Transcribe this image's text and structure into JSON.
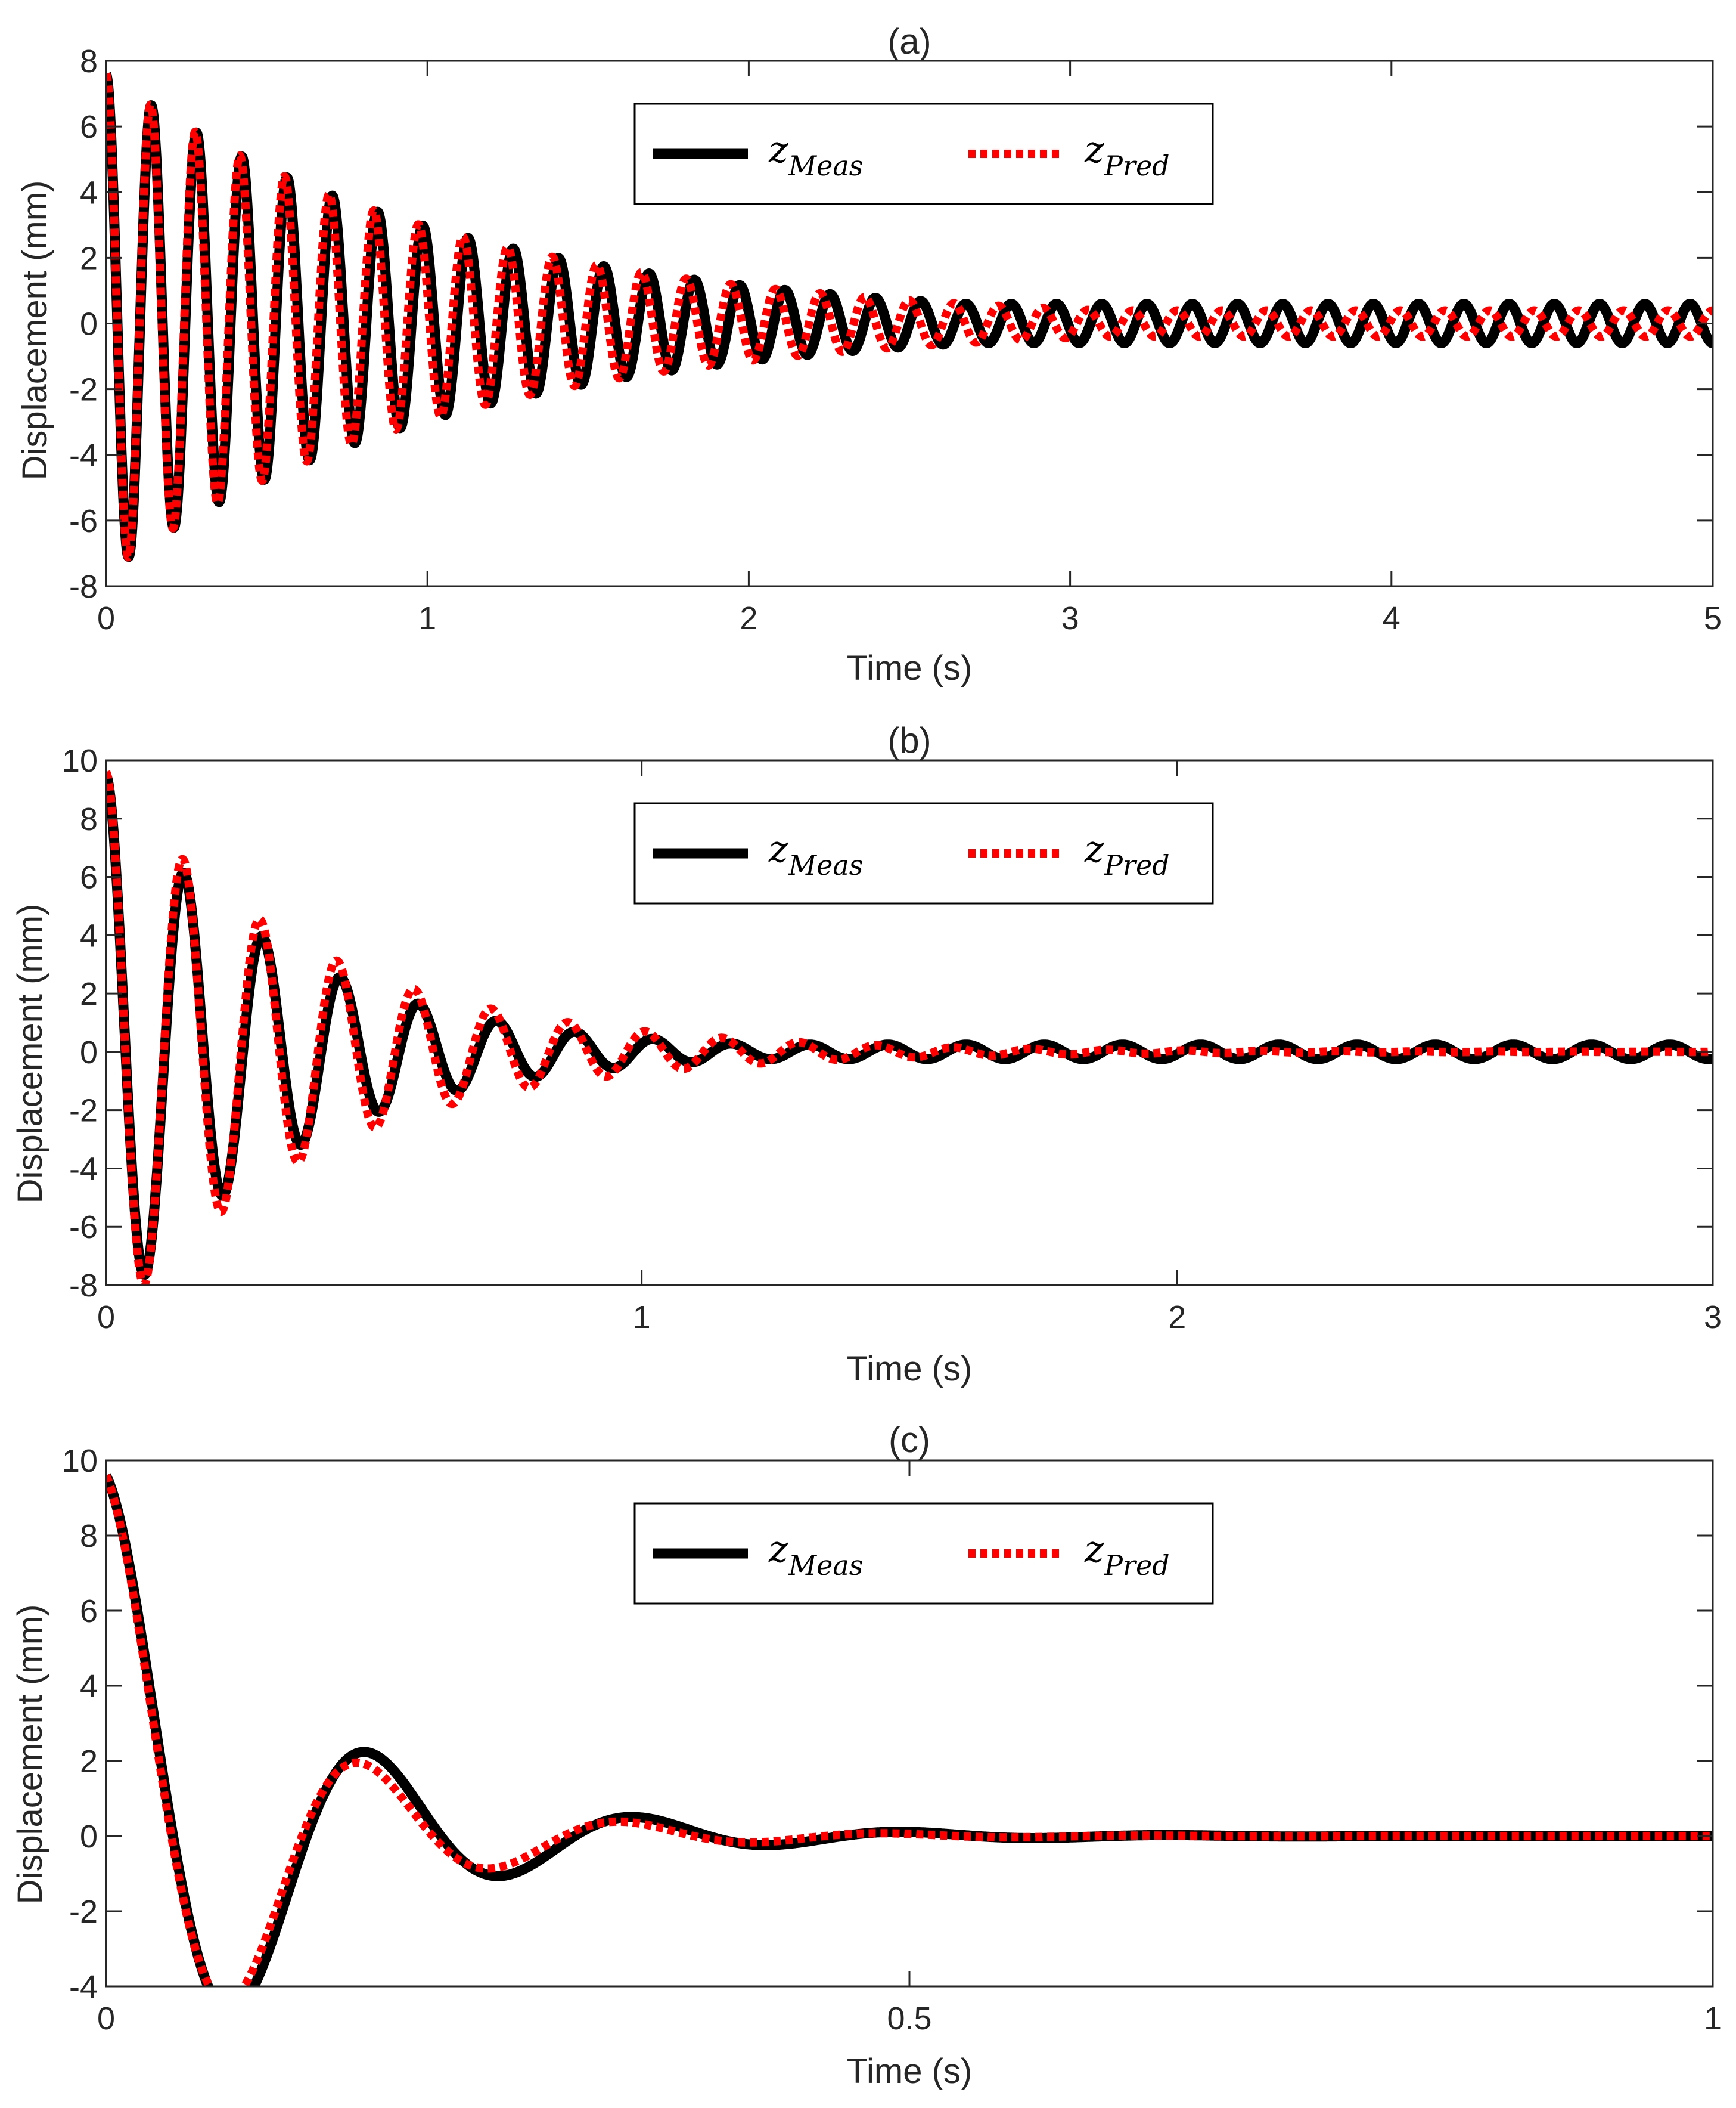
{
  "chart_data": [
    {
      "type": "line",
      "title": "(a)",
      "xlabel": "Time (s)",
      "ylabel": "Displacement (mm)",
      "xlim": [
        0,
        5
      ],
      "ylim": [
        -8,
        8
      ],
      "xticks": [
        0,
        1,
        2,
        3,
        4,
        5
      ],
      "xtick_labels": [
        "0",
        "1",
        "2",
        "3",
        "4",
        "5"
      ],
      "yticks": [
        -8,
        -6,
        -4,
        -2,
        0,
        2,
        4,
        6,
        8
      ],
      "ytick_labels": [
        "-8",
        "-6",
        "-4",
        "-2",
        "0",
        "2",
        "4",
        "6",
        "8"
      ],
      "legend": {
        "placement": "top-center",
        "entries": [
          {
            "symbol": "z",
            "sub": "Meas",
            "color": "#000000",
            "style": "solid"
          },
          {
            "symbol": "z",
            "sub": "Pred",
            "color": "#ff0000",
            "style": "dotted"
          }
        ]
      },
      "series": [
        {
          "name": "z_Meas",
          "color": "#000000",
          "style": "solid",
          "model": {
            "A": 7.6,
            "decay": 0.95,
            "freq": 7.1,
            "floor": 0.6,
            "phase": 0.0,
            "t_end": 5
          }
        },
        {
          "name": "z_Pred",
          "color": "#ff0000",
          "style": "dotted",
          "model": {
            "A": 7.6,
            "decay": 0.95,
            "freq": 7.2,
            "floor": 0.4,
            "phase": 0.0,
            "t_end": 5
          }
        }
      ]
    },
    {
      "type": "line",
      "title": "(b)",
      "xlabel": "Time (s)",
      "ylabel": "Displacement (mm)",
      "xlim": [
        0,
        3
      ],
      "ylim": [
        -8,
        10
      ],
      "xticks": [
        0,
        1,
        2,
        3
      ],
      "xtick_labels": [
        "0",
        "1",
        "2",
        "3"
      ],
      "yticks": [
        -8,
        -6,
        -4,
        -2,
        0,
        2,
        4,
        6,
        8,
        10
      ],
      "ytick_labels": [
        "-8",
        "-6",
        "-4",
        "-2",
        "0",
        "2",
        "4",
        "6",
        "8",
        "10"
      ],
      "legend": {
        "placement": "top-center",
        "entries": [
          {
            "symbol": "z",
            "sub": "Meas",
            "color": "#000000",
            "style": "solid"
          },
          {
            "symbol": "z",
            "sub": "Pred",
            "color": "#ff0000",
            "style": "dotted"
          }
        ]
      },
      "series": [
        {
          "name": "z_Meas",
          "color": "#000000",
          "style": "solid",
          "model": {
            "A": 9.5,
            "decay": 3.0,
            "freq": 6.85,
            "floor": 0.25,
            "phase": 0.0,
            "t_end": 3
          }
        },
        {
          "name": "z_Pred",
          "color": "#ff0000",
          "style": "dotted",
          "model": {
            "A": 9.6,
            "decay": 2.6,
            "freq": 6.95,
            "floor": 0.0,
            "phase": 0.0,
            "t_end": 3
          }
        }
      ]
    },
    {
      "type": "line",
      "title": "(c)",
      "xlabel": "Time (s)",
      "ylabel": "Displacement (mm)",
      "xlim": [
        0,
        1
      ],
      "ylim": [
        -4,
        10
      ],
      "xticks": [
        0,
        0.5,
        1
      ],
      "xtick_labels": [
        "0",
        "0.5",
        "1"
      ],
      "yticks": [
        -4,
        -2,
        0,
        2,
        4,
        6,
        8,
        10
      ],
      "ytick_labels": [
        "-4",
        "-2",
        "0",
        "2",
        "4",
        "6",
        "8",
        "10"
      ],
      "legend": {
        "placement": "top-center",
        "entries": [
          {
            "symbol": "z",
            "sub": "Meas",
            "color": "#000000",
            "style": "solid"
          },
          {
            "symbol": "z",
            "sub": "Pred",
            "color": "#ff0000",
            "style": "dotted"
          }
        ]
      },
      "series": [
        {
          "name": "z_Meas",
          "color": "#000000",
          "style": "solid",
          "model": {
            "A": 9.6,
            "decay": 8.9,
            "freq": 6.0,
            "floor": 0.0,
            "phase": 0.0,
            "t_end": 1
          }
        },
        {
          "name": "z_Pred",
          "color": "#ff0000",
          "style": "dotted",
          "model": {
            "A": 9.6,
            "decay": 10.0,
            "freq": 6.15,
            "floor": 0.0,
            "phase": 0.0,
            "t_end": 1
          }
        }
      ]
    }
  ]
}
